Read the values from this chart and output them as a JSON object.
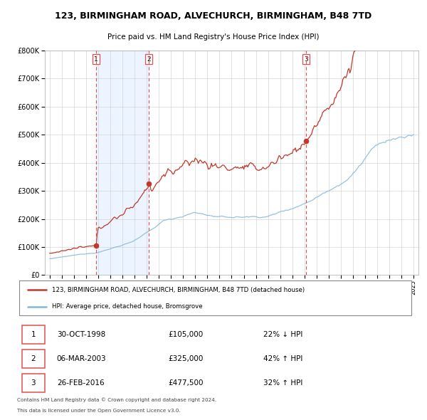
{
  "title1": "123, BIRMINGHAM ROAD, ALVECHURCH, BIRMINGHAM, B48 7TD",
  "title2": "Price paid vs. HM Land Registry's House Price Index (HPI)",
  "legend_line1": "123, BIRMINGHAM ROAD, ALVECHURCH, BIRMINGHAM, B48 7TD (detached house)",
  "legend_line2": "HPI: Average price, detached house, Bromsgrove",
  "transactions": [
    {
      "num": 1,
      "date": "30-OCT-1998",
      "price": 105000,
      "hpi_rel": "22% ↓ HPI",
      "year": 1998.83
    },
    {
      "num": 2,
      "date": "06-MAR-2003",
      "price": 325000,
      "hpi_rel": "42% ↑ HPI",
      "year": 2003.17
    },
    {
      "num": 3,
      "date": "26-FEB-2016",
      "price": 477500,
      "hpi_rel": "32% ↑ HPI",
      "year": 2016.13
    }
  ],
  "footnote1": "Contains HM Land Registry data © Crown copyright and database right 2024.",
  "footnote2": "This data is licensed under the Open Government Licence v3.0.",
  "red_color": "#c0392b",
  "blue_color": "#85b8d8",
  "bg_shade_color": "#ddeeff",
  "dashed_color": "#e05050",
  "ylim": [
    0,
    800000
  ],
  "yticks": [
    0,
    100000,
    200000,
    300000,
    400000,
    500000,
    600000,
    700000,
    800000
  ]
}
